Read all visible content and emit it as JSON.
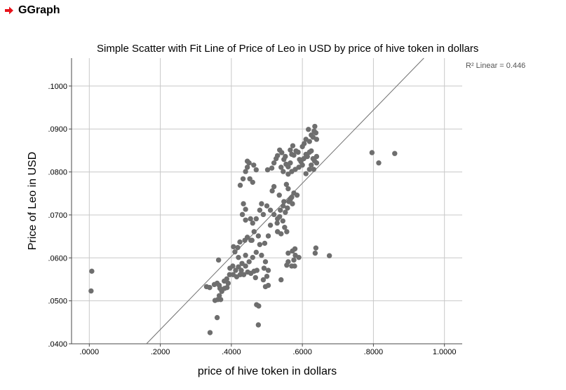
{
  "header": {
    "title": "GGraph",
    "icon": "red-arrow-icon",
    "icon_color": "#e8131b"
  },
  "chart_data": {
    "type": "scatter",
    "title": "Simple Scatter with Fit Line of Price of Leo in USD by price of hive token in dollars",
    "xlabel": "price of hive token in dollars",
    "ylabel": "Price of Leo in USD",
    "xlim": [
      -0.05,
      1.05
    ],
    "ylim": [
      0.04,
      0.1065
    ],
    "x_ticks": [
      0.0,
      0.2,
      0.4,
      0.6,
      0.8,
      1.0
    ],
    "x_tick_labels": [
      ".0000",
      ".2000",
      ".4000",
      ".6000",
      ".8000",
      "1.0000"
    ],
    "y_ticks": [
      0.04,
      0.05,
      0.06,
      0.07,
      0.08,
      0.09,
      0.1
    ],
    "y_tick_labels": [
      ".0400",
      ".0500",
      ".0600",
      ".0700",
      ".0800",
      ".0900",
      ".1000"
    ],
    "grid": true,
    "r2_label": "R² Linear = 0.446",
    "point_color": "#6e6e6e",
    "fit_line": {
      "color": "#707070",
      "points": [
        [
          0.161,
          0.04
        ],
        [
          0.942,
          0.1065
        ]
      ]
    },
    "points": [
      [
        0.007,
        0.0569
      ],
      [
        0.005,
        0.0523
      ],
      [
        0.34,
        0.0426
      ],
      [
        0.36,
        0.0461
      ],
      [
        0.476,
        0.0444
      ],
      [
        0.477,
        0.0488
      ],
      [
        0.471,
        0.0491
      ],
      [
        0.33,
        0.0533
      ],
      [
        0.339,
        0.0531
      ],
      [
        0.352,
        0.0538
      ],
      [
        0.36,
        0.0541
      ],
      [
        0.366,
        0.0536
      ],
      [
        0.354,
        0.0501
      ],
      [
        0.362,
        0.0503
      ],
      [
        0.37,
        0.0503
      ],
      [
        0.366,
        0.0512
      ],
      [
        0.373,
        0.0522
      ],
      [
        0.368,
        0.0529
      ],
      [
        0.381,
        0.0529
      ],
      [
        0.388,
        0.0531
      ],
      [
        0.391,
        0.0541
      ],
      [
        0.387,
        0.0551
      ],
      [
        0.364,
        0.0595
      ],
      [
        0.405,
        0.0561
      ],
      [
        0.415,
        0.0556
      ],
      [
        0.425,
        0.0561
      ],
      [
        0.428,
        0.0571
      ],
      [
        0.435,
        0.0561
      ],
      [
        0.44,
        0.0581
      ],
      [
        0.446,
        0.0567
      ],
      [
        0.455,
        0.0564
      ],
      [
        0.464,
        0.0569
      ],
      [
        0.472,
        0.0571
      ],
      [
        0.45,
        0.0591
      ],
      [
        0.43,
        0.0587
      ],
      [
        0.42,
        0.0601
      ],
      [
        0.44,
        0.0606
      ],
      [
        0.46,
        0.0601
      ],
      [
        0.47,
        0.0613
      ],
      [
        0.41,
        0.0614
      ],
      [
        0.418,
        0.0624
      ],
      [
        0.406,
        0.0626
      ],
      [
        0.424,
        0.0637
      ],
      [
        0.438,
        0.0641
      ],
      [
        0.445,
        0.0648
      ],
      [
        0.455,
        0.0641
      ],
      [
        0.476,
        0.0651
      ],
      [
        0.48,
        0.0631
      ],
      [
        0.494,
        0.0634
      ],
      [
        0.485,
        0.0606
      ],
      [
        0.496,
        0.0591
      ],
      [
        0.492,
        0.0576
      ],
      [
        0.504,
        0.0571
      ],
      [
        0.5,
        0.0557
      ],
      [
        0.49,
        0.0549
      ],
      [
        0.504,
        0.0536
      ],
      [
        0.496,
        0.0533
      ],
      [
        0.54,
        0.0549
      ],
      [
        0.556,
        0.0583
      ],
      [
        0.56,
        0.0591
      ],
      [
        0.57,
        0.0581
      ],
      [
        0.576,
        0.0595
      ],
      [
        0.58,
        0.0606
      ],
      [
        0.59,
        0.0601
      ],
      [
        0.56,
        0.0611
      ],
      [
        0.572,
        0.0616
      ],
      [
        0.579,
        0.0621
      ],
      [
        0.636,
        0.0611
      ],
      [
        0.638,
        0.0623
      ],
      [
        0.676,
        0.0605
      ],
      [
        0.578,
        0.0581
      ],
      [
        0.431,
        0.0701
      ],
      [
        0.44,
        0.0688
      ],
      [
        0.46,
        0.0681
      ],
      [
        0.47,
        0.0691
      ],
      [
        0.48,
        0.0711
      ],
      [
        0.49,
        0.0701
      ],
      [
        0.485,
        0.0726
      ],
      [
        0.5,
        0.0721
      ],
      [
        0.51,
        0.0711
      ],
      [
        0.52,
        0.0701
      ],
      [
        0.53,
        0.0691
      ],
      [
        0.538,
        0.0711
      ],
      [
        0.546,
        0.0721
      ],
      [
        0.552,
        0.0706
      ],
      [
        0.558,
        0.0716
      ],
      [
        0.562,
        0.0731
      ],
      [
        0.57,
        0.0741
      ],
      [
        0.576,
        0.0751
      ],
      [
        0.585,
        0.0746
      ],
      [
        0.572,
        0.0726
      ],
      [
        0.548,
        0.0731
      ],
      [
        0.53,
        0.0661
      ],
      [
        0.54,
        0.0656
      ],
      [
        0.55,
        0.0671
      ],
      [
        0.556,
        0.0661
      ],
      [
        0.529,
        0.0681
      ],
      [
        0.536,
        0.0696
      ],
      [
        0.545,
        0.0686
      ],
      [
        0.515,
        0.0756
      ],
      [
        0.52,
        0.0766
      ],
      [
        0.535,
        0.0746
      ],
      [
        0.555,
        0.0771
      ],
      [
        0.56,
        0.0761
      ],
      [
        0.566,
        0.0736
      ],
      [
        0.425,
        0.0769
      ],
      [
        0.433,
        0.0784
      ],
      [
        0.44,
        0.0801
      ],
      [
        0.445,
        0.0811
      ],
      [
        0.45,
        0.0821
      ],
      [
        0.452,
        0.0784
      ],
      [
        0.46,
        0.0776
      ],
      [
        0.445,
        0.0825
      ],
      [
        0.463,
        0.0816
      ],
      [
        0.47,
        0.0805
      ],
      [
        0.434,
        0.0726
      ],
      [
        0.44,
        0.0713
      ],
      [
        0.502,
        0.0805
      ],
      [
        0.514,
        0.0809
      ],
      [
        0.52,
        0.0821
      ],
      [
        0.526,
        0.0831
      ],
      [
        0.53,
        0.0838
      ],
      [
        0.536,
        0.0851
      ],
      [
        0.542,
        0.0845
      ],
      [
        0.548,
        0.0829
      ],
      [
        0.554,
        0.0818
      ],
      [
        0.56,
        0.0812
      ],
      [
        0.566,
        0.0821
      ],
      [
        0.57,
        0.0841
      ],
      [
        0.576,
        0.0839
      ],
      [
        0.582,
        0.0849
      ],
      [
        0.588,
        0.0846
      ],
      [
        0.592,
        0.0829
      ],
      [
        0.596,
        0.0824
      ],
      [
        0.6,
        0.0816
      ],
      [
        0.604,
        0.0831
      ],
      [
        0.61,
        0.0841
      ],
      [
        0.614,
        0.0836
      ],
      [
        0.62,
        0.0846
      ],
      [
        0.625,
        0.0849
      ],
      [
        0.63,
        0.0831
      ],
      [
        0.634,
        0.0826
      ],
      [
        0.64,
        0.0836
      ],
      [
        0.62,
        0.0806
      ],
      [
        0.61,
        0.0796
      ],
      [
        0.59,
        0.0811
      ],
      [
        0.58,
        0.0806
      ],
      [
        0.57,
        0.0801
      ],
      [
        0.56,
        0.0795
      ],
      [
        0.546,
        0.0801
      ],
      [
        0.54,
        0.0811
      ],
      [
        0.552,
        0.0836
      ],
      [
        0.566,
        0.0851
      ],
      [
        0.573,
        0.0861
      ],
      [
        0.605,
        0.0866
      ],
      [
        0.6,
        0.0859
      ],
      [
        0.61,
        0.0876
      ],
      [
        0.62,
        0.0871
      ],
      [
        0.625,
        0.0886
      ],
      [
        0.617,
        0.0899
      ],
      [
        0.633,
        0.0895
      ],
      [
        0.638,
        0.0891
      ],
      [
        0.635,
        0.0906
      ],
      [
        0.64,
        0.0876
      ],
      [
        0.63,
        0.0881
      ],
      [
        0.64,
        0.0821
      ],
      [
        0.625,
        0.0816
      ],
      [
        0.632,
        0.0806
      ],
      [
        0.796,
        0.0845
      ],
      [
        0.815,
        0.0821
      ],
      [
        0.86,
        0.0843
      ],
      [
        0.454,
        0.0691
      ],
      [
        0.464,
        0.0661
      ],
      [
        0.458,
        0.0641
      ],
      [
        0.504,
        0.0651
      ],
      [
        0.51,
        0.0676
      ],
      [
        0.42,
        0.0579
      ],
      [
        0.404,
        0.0581
      ],
      [
        0.412,
        0.0571
      ],
      [
        0.395,
        0.0561
      ],
      [
        0.38,
        0.0546
      ],
      [
        0.396,
        0.0576
      ],
      [
        0.468,
        0.0554
      ]
    ]
  }
}
